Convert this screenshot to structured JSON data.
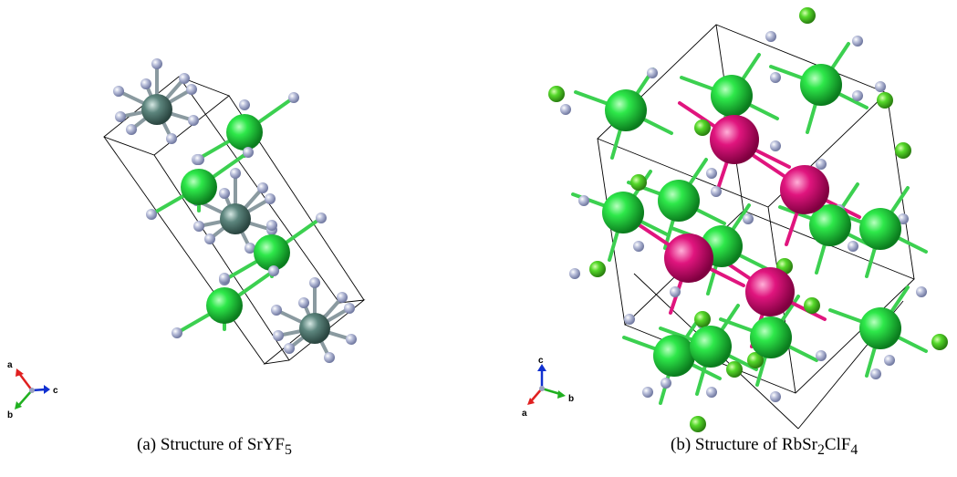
{
  "panels": [
    {
      "caption_prefix": "(a) Structure of",
      "formula": [
        "SrYF",
        "5",
        ""
      ],
      "axes": {
        "labels": [
          "a",
          "b",
          "c"
        ]
      }
    },
    {
      "caption_prefix": "(b) Structure of",
      "formula": [
        "RbSr",
        "2",
        "ClF",
        "4"
      ],
      "axes": {
        "labels": [
          "c",
          "a",
          "b"
        ]
      }
    }
  ],
  "colors": {
    "sr_green": "#2ecc40",
    "y_teal": "#4f7a72",
    "f_lavender": "#b0b6d4",
    "rb_magenta": "#e0157e",
    "cl_lime": "#55d82a",
    "cell_line": "#000000",
    "axis_a": "#e02020",
    "axis_b": "#20b020",
    "axis_c": "#1030d0"
  }
}
